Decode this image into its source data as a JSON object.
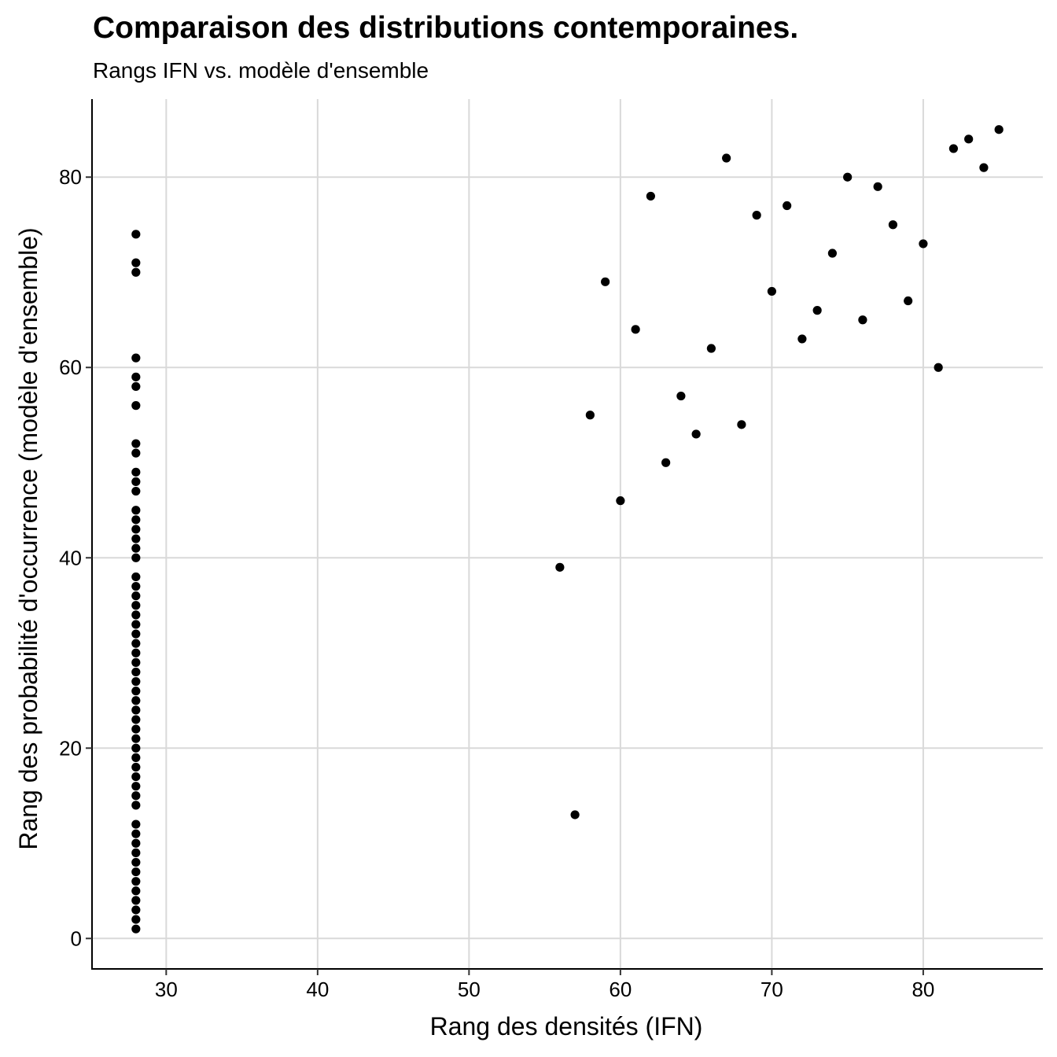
{
  "chart_data": {
    "type": "scatter",
    "title": "Comparaison des distributions contemporaines.",
    "subtitle": "Rangs IFN vs. modèle d'ensemble",
    "xlabel": "Rang des densités (IFN)",
    "ylabel": "Rang des probabilité d'occurrence (modèle d'ensemble)",
    "xlim": [
      25.1,
      87.9
    ],
    "ylim": [
      -3.2,
      88.2
    ],
    "xticks": [
      30,
      40,
      50,
      60,
      70,
      80
    ],
    "yticks": [
      0,
      20,
      40,
      60,
      80
    ],
    "grid": true,
    "point_color": "#000000",
    "grid_color": "#d9d9d9",
    "points": [
      {
        "x": 28,
        "y": 1
      },
      {
        "x": 28,
        "y": 2
      },
      {
        "x": 28,
        "y": 3
      },
      {
        "x": 28,
        "y": 4
      },
      {
        "x": 28,
        "y": 5
      },
      {
        "x": 28,
        "y": 6
      },
      {
        "x": 28,
        "y": 7
      },
      {
        "x": 28,
        "y": 8
      },
      {
        "x": 28,
        "y": 9
      },
      {
        "x": 28,
        "y": 10
      },
      {
        "x": 28,
        "y": 11
      },
      {
        "x": 28,
        "y": 12
      },
      {
        "x": 28,
        "y": 14
      },
      {
        "x": 28,
        "y": 15
      },
      {
        "x": 28,
        "y": 16
      },
      {
        "x": 28,
        "y": 17
      },
      {
        "x": 28,
        "y": 18
      },
      {
        "x": 28,
        "y": 19
      },
      {
        "x": 28,
        "y": 20
      },
      {
        "x": 28,
        "y": 21
      },
      {
        "x": 28,
        "y": 22
      },
      {
        "x": 28,
        "y": 23
      },
      {
        "x": 28,
        "y": 24
      },
      {
        "x": 28,
        "y": 25
      },
      {
        "x": 28,
        "y": 26
      },
      {
        "x": 28,
        "y": 27
      },
      {
        "x": 28,
        "y": 28
      },
      {
        "x": 28,
        "y": 29
      },
      {
        "x": 28,
        "y": 30
      },
      {
        "x": 28,
        "y": 31
      },
      {
        "x": 28,
        "y": 32
      },
      {
        "x": 28,
        "y": 33
      },
      {
        "x": 28,
        "y": 34
      },
      {
        "x": 28,
        "y": 35
      },
      {
        "x": 28,
        "y": 36
      },
      {
        "x": 28,
        "y": 37
      },
      {
        "x": 28,
        "y": 38
      },
      {
        "x": 28,
        "y": 40
      },
      {
        "x": 28,
        "y": 41
      },
      {
        "x": 28,
        "y": 42
      },
      {
        "x": 28,
        "y": 43
      },
      {
        "x": 28,
        "y": 44
      },
      {
        "x": 28,
        "y": 45
      },
      {
        "x": 28,
        "y": 47
      },
      {
        "x": 28,
        "y": 48
      },
      {
        "x": 28,
        "y": 49
      },
      {
        "x": 28,
        "y": 51
      },
      {
        "x": 28,
        "y": 52
      },
      {
        "x": 28,
        "y": 56
      },
      {
        "x": 28,
        "y": 58
      },
      {
        "x": 28,
        "y": 59
      },
      {
        "x": 28,
        "y": 61
      },
      {
        "x": 28,
        "y": 70
      },
      {
        "x": 28,
        "y": 71
      },
      {
        "x": 28,
        "y": 74
      },
      {
        "x": 56,
        "y": 39
      },
      {
        "x": 57,
        "y": 13
      },
      {
        "x": 58,
        "y": 55
      },
      {
        "x": 59,
        "y": 69
      },
      {
        "x": 60,
        "y": 46
      },
      {
        "x": 61,
        "y": 64
      },
      {
        "x": 62,
        "y": 78
      },
      {
        "x": 63,
        "y": 50
      },
      {
        "x": 64,
        "y": 57
      },
      {
        "x": 65,
        "y": 53
      },
      {
        "x": 66,
        "y": 62
      },
      {
        "x": 67,
        "y": 82
      },
      {
        "x": 68,
        "y": 54
      },
      {
        "x": 69,
        "y": 76
      },
      {
        "x": 70,
        "y": 68
      },
      {
        "x": 71,
        "y": 77
      },
      {
        "x": 72,
        "y": 63
      },
      {
        "x": 73,
        "y": 66
      },
      {
        "x": 74,
        "y": 72
      },
      {
        "x": 75,
        "y": 80
      },
      {
        "x": 76,
        "y": 65
      },
      {
        "x": 77,
        "y": 79
      },
      {
        "x": 78,
        "y": 75
      },
      {
        "x": 79,
        "y": 67
      },
      {
        "x": 80,
        "y": 73
      },
      {
        "x": 81,
        "y": 60
      },
      {
        "x": 82,
        "y": 83
      },
      {
        "x": 83,
        "y": 84
      },
      {
        "x": 84,
        "y": 81
      },
      {
        "x": 85,
        "y": 85
      }
    ]
  }
}
